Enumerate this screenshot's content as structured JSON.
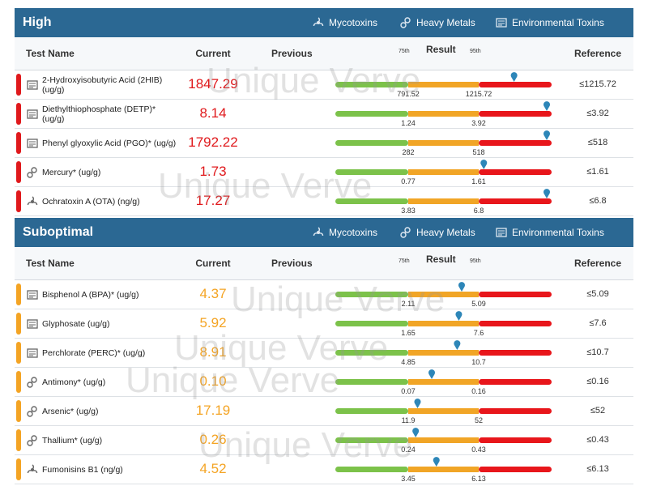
{
  "watermark": "Unique Verve",
  "columns": {
    "test_name": "Test Name",
    "current": "Current",
    "previous": "Previous",
    "result": "Result",
    "p75": "75th",
    "p95": "95th",
    "reference": "Reference"
  },
  "legend": [
    "Mycotoxins",
    "Heavy Metals",
    "Environmental Toxins"
  ],
  "sections": [
    {
      "title": "High",
      "color": "#e0191c",
      "rows": [
        {
          "name": "2-Hydroxyisobutyric Acid (2HIB) (ug/g)",
          "current": "1847.29",
          "p75": "791.52",
          "p95": "1215.72",
          "reference": "≤1215.72"
        },
        {
          "name": "Diethylthiophosphate (DETP)* (ug/g)",
          "current": "8.14",
          "p75": "1.24",
          "p95": "3.92",
          "reference": "≤3.92"
        },
        {
          "name": "Phenyl glyoxylic Acid (PGO)* (ug/g)",
          "current": "1792.22",
          "p75": "282",
          "p95": "518",
          "reference": "≤518"
        },
        {
          "name": "Mercury* (ug/g)",
          "current": "1.73",
          "p75": "0.77",
          "p95": "1.61",
          "reference": "≤1.61"
        },
        {
          "name": "Ochratoxin A (OTA) (ng/g)",
          "current": "17.27",
          "p75": "3.83",
          "p95": "6.8",
          "reference": "≤6.8"
        }
      ]
    },
    {
      "title": "Suboptimal",
      "color": "#f4a424",
      "rows": [
        {
          "name": "Bisphenol A (BPA)* (ug/g)",
          "current": "4.37",
          "p75": "2.11",
          "p95": "5.09",
          "reference": "≤5.09"
        },
        {
          "name": "Glyphosate (ug/g)",
          "current": "5.92",
          "p75": "1.65",
          "p95": "7.6",
          "reference": "≤7.6"
        },
        {
          "name": "Perchlorate (PERC)* (ug/g)",
          "current": "8.91",
          "p75": "4.85",
          "p95": "10.7",
          "reference": "≤10.7"
        },
        {
          "name": "Antimony* (ug/g)",
          "current": "0.10",
          "p75": "0.07",
          "p95": "0.16",
          "reference": "≤0.16"
        },
        {
          "name": "Arsenic* (ug/g)",
          "current": "17.19",
          "p75": "11.9",
          "p95": "52",
          "reference": "≤52"
        },
        {
          "name": "Thallium* (ug/g)",
          "current": "0.26",
          "p75": "0.24",
          "p95": "0.43",
          "reference": "≤0.43"
        },
        {
          "name": "Fumonisins B1 (ng/g)",
          "current": "4.52",
          "p75": "3.45",
          "p95": "6.13",
          "reference": "≤6.13"
        }
      ]
    }
  ]
}
